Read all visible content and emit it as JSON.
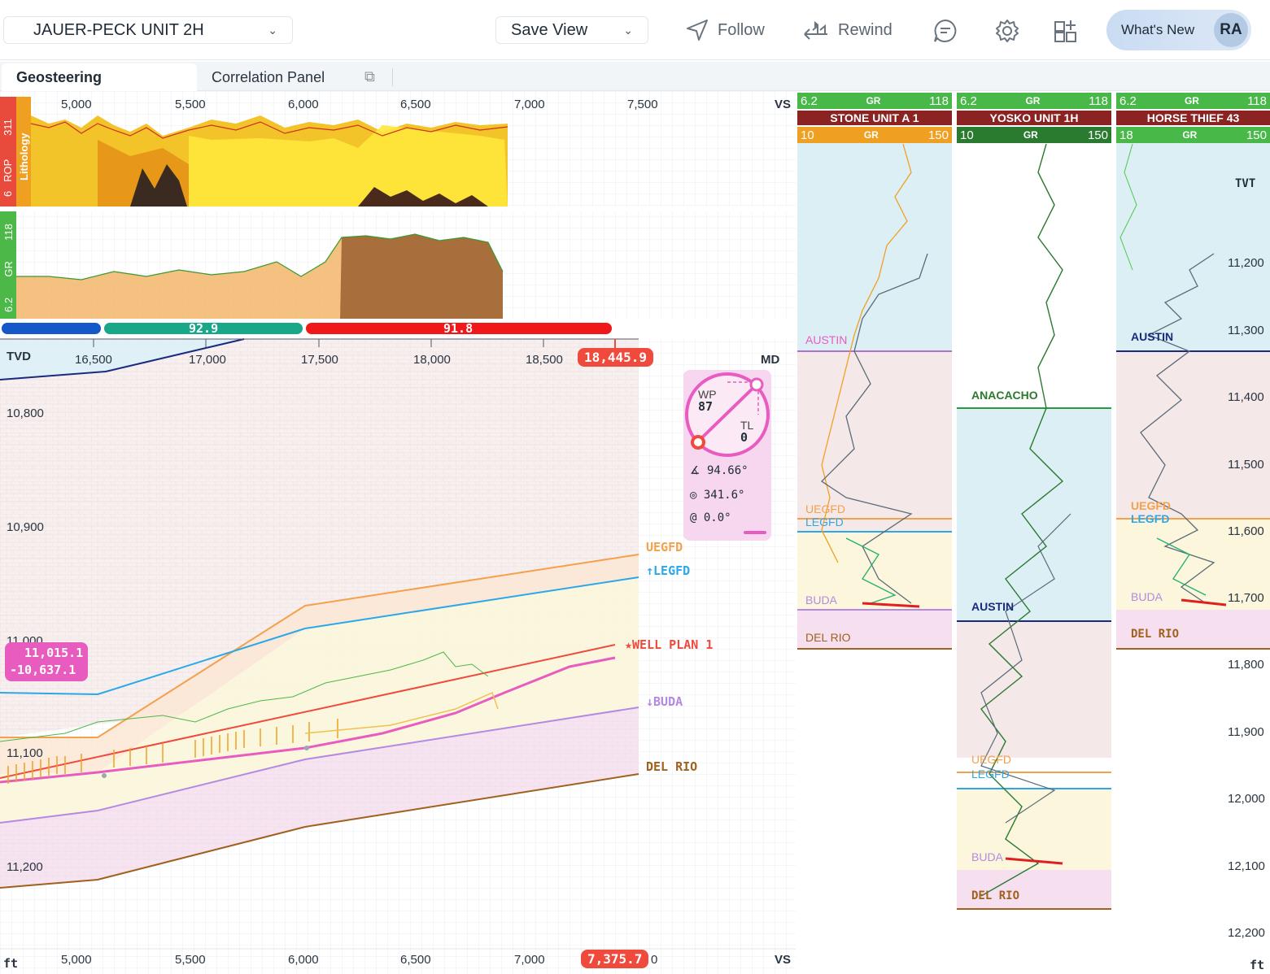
{
  "header": {
    "well_name": "JAUER-PECK UNIT 2H",
    "save_view": "Save View",
    "follow": "Follow",
    "rewind": "Rewind",
    "whats_new": "What's New",
    "avatar": "RA"
  },
  "tabs": {
    "geosteering": "Geosteering",
    "correlation": "Correlation Panel"
  },
  "top_track": {
    "vs_ticks": [
      "5,000",
      "5,500",
      "6,000",
      "6,500",
      "7,000",
      "7,500"
    ],
    "vs_label": "VS",
    "rop_label": "ROP",
    "rop_min": "6",
    "rop_max": "311",
    "lithology_label": "Lithology",
    "gr_label": "GR",
    "gr_min": "6.2",
    "gr_max": "118"
  },
  "dip_bar": {
    "seg2": "92.9",
    "seg3": "91.8"
  },
  "section": {
    "tvd_label": "TVD",
    "md_label": "MD",
    "md_ticks": [
      "16,500",
      "17,000",
      "17,500",
      "18,000",
      "18,500"
    ],
    "md_current": "18,445.9",
    "tvd_ticks": [
      "10,800",
      "10,900",
      "11,000",
      "11,100",
      "11,200"
    ],
    "vs_ticks": [
      "5,000",
      "5,500",
      "6,000",
      "6,500",
      "7,000"
    ],
    "vs_current": "7,375.7",
    "vs_tail": "0",
    "vs_label": "VS",
    "ft": "ft",
    "cursor_tvd": "11,015.1",
    "cursor_ss": "-10,637.1",
    "formations": {
      "uegfd": "UEGFD",
      "legfd": "↑LEGFD",
      "well_plan": "★WELL PLAN 1",
      "buda": "↓BUDA",
      "del_rio": "DEL RIO"
    }
  },
  "gauge": {
    "wp_label": "WP",
    "wp_value": "87",
    "tl_label": "TL",
    "tl_value": "0",
    "inclination": "94.66°",
    "azimuth": "341.6°",
    "toolface": "0.0°"
  },
  "correlation": {
    "wells": [
      {
        "name": "STONE UNIT A 1",
        "gr1_min": "6.2",
        "gr1_max": "118",
        "gr2_min": "10",
        "gr2_max": "150",
        "gr_label": "GR"
      },
      {
        "name": "YOSKO UNIT 1H",
        "gr1_min": "6.2",
        "gr1_max": "118",
        "gr2_min": "10",
        "gr2_max": "150",
        "gr_label": "GR"
      },
      {
        "name": "HORSE THIEF 43",
        "gr1_min": "6.2",
        "gr1_max": "118",
        "gr2_min": "18",
        "gr2_max": "150",
        "gr_label": "GR"
      }
    ],
    "tvt_label": "TVT",
    "tvt_ticks": [
      "11,200",
      "11,300",
      "11,400",
      "11,500",
      "11,600",
      "11,700",
      "11,800",
      "11,900",
      "12,000",
      "12,100",
      "12,200"
    ],
    "ft": "ft",
    "tops": {
      "austin": "AUSTIN",
      "anacacho": "ANACACHO",
      "uegfd": "UEGFD",
      "legfd": "LEGFD",
      "buda": "BUDA",
      "del_rio": "DEL RIO"
    }
  },
  "colors": {
    "accent_red": "#f04a3c",
    "pink": "#e85cc0",
    "orange": "#f5a04a",
    "blue": "#2aa8e8",
    "purple": "#b48ae0",
    "brown": "#a0601e"
  }
}
